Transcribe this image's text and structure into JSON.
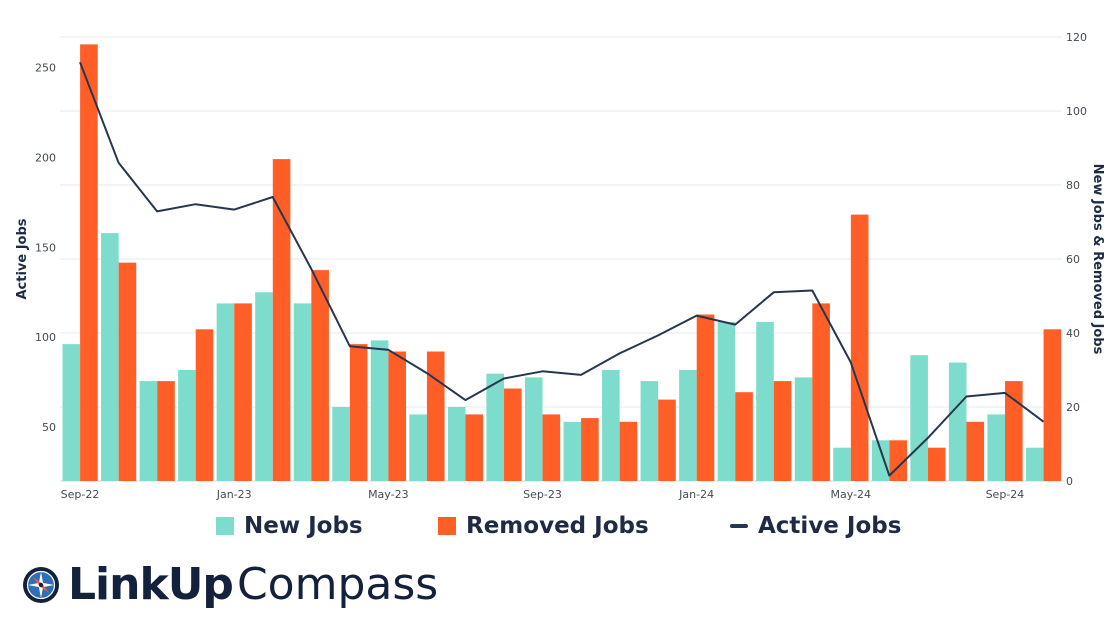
{
  "colors": {
    "new": "#7ddccb",
    "removed": "#ff5f27",
    "active": "#27364f",
    "grid": "#e6e9f3",
    "text": "#1f2a44"
  },
  "chart_data": {
    "type": "bar+line",
    "categories": [
      "Sep-22",
      "Oct-22",
      "Nov-22",
      "Dec-22",
      "Jan-23",
      "Feb-23",
      "Mar-23",
      "Apr-23",
      "May-23",
      "Jun-23",
      "Jul-23",
      "Aug-23",
      "Sep-23",
      "Oct-23",
      "Nov-23",
      "Dec-23",
      "Jan-24",
      "Feb-24",
      "Mar-24",
      "Apr-24",
      "May-24",
      "Jun-24",
      "Jul-24",
      "Aug-24",
      "Sep-24",
      "Oct-24"
    ],
    "x_tick_labels": [
      {
        "index": 0,
        "label": "Sep-22"
      },
      {
        "index": 4,
        "label": "Jan-23"
      },
      {
        "index": 8,
        "label": "May-23"
      },
      {
        "index": 12,
        "label": "Sep-23"
      },
      {
        "index": 16,
        "label": "Jan-24"
      },
      {
        "index": 20,
        "label": "May-24"
      },
      {
        "index": 24,
        "label": "Sep-24"
      }
    ],
    "series": [
      {
        "name": "New Jobs",
        "type": "bar",
        "axis": "right",
        "values": [
          37,
          67,
          27,
          30,
          48,
          51,
          48,
          20,
          38,
          18,
          20,
          29,
          28,
          16,
          30,
          27,
          30,
          43,
          43,
          28,
          9,
          11,
          34,
          32,
          18,
          9
        ]
      },
      {
        "name": "Removed Jobs",
        "type": "bar",
        "axis": "right",
        "values": [
          118,
          59,
          27,
          41,
          48,
          87,
          57,
          37,
          35,
          35,
          18,
          25,
          18,
          17,
          16,
          22,
          45,
          24,
          27,
          48,
          72,
          11,
          9,
          16,
          27,
          41
        ]
      },
      {
        "name": "Active Jobs",
        "type": "line",
        "axis": "left",
        "values": [
          253,
          197,
          170,
          174,
          171,
          178,
          138,
          95,
          93,
          80,
          65,
          77,
          81,
          79,
          91,
          101,
          112,
          107,
          125,
          126,
          86,
          23,
          44,
          67,
          69,
          53
        ]
      }
    ],
    "y_left": {
      "label": "Active Jobs",
      "range": [
        20,
        267
      ],
      "ticks": [
        50,
        100,
        150,
        200,
        250
      ]
    },
    "y_right": {
      "label": "New Jobs & Removed Jobs",
      "range": [
        0,
        120
      ],
      "ticks": [
        0,
        20,
        40,
        60,
        80,
        100,
        120
      ]
    },
    "grid": true,
    "legend_position": "bottom"
  },
  "legend": {
    "items": [
      {
        "label": "New Jobs",
        "shape": "square"
      },
      {
        "label": "Removed Jobs",
        "shape": "square"
      },
      {
        "label": "Active Jobs",
        "shape": "line"
      }
    ]
  },
  "brand": {
    "name_bold": "LinkUp",
    "name_light": "Compass",
    "mark_icon": "compass-icon"
  }
}
